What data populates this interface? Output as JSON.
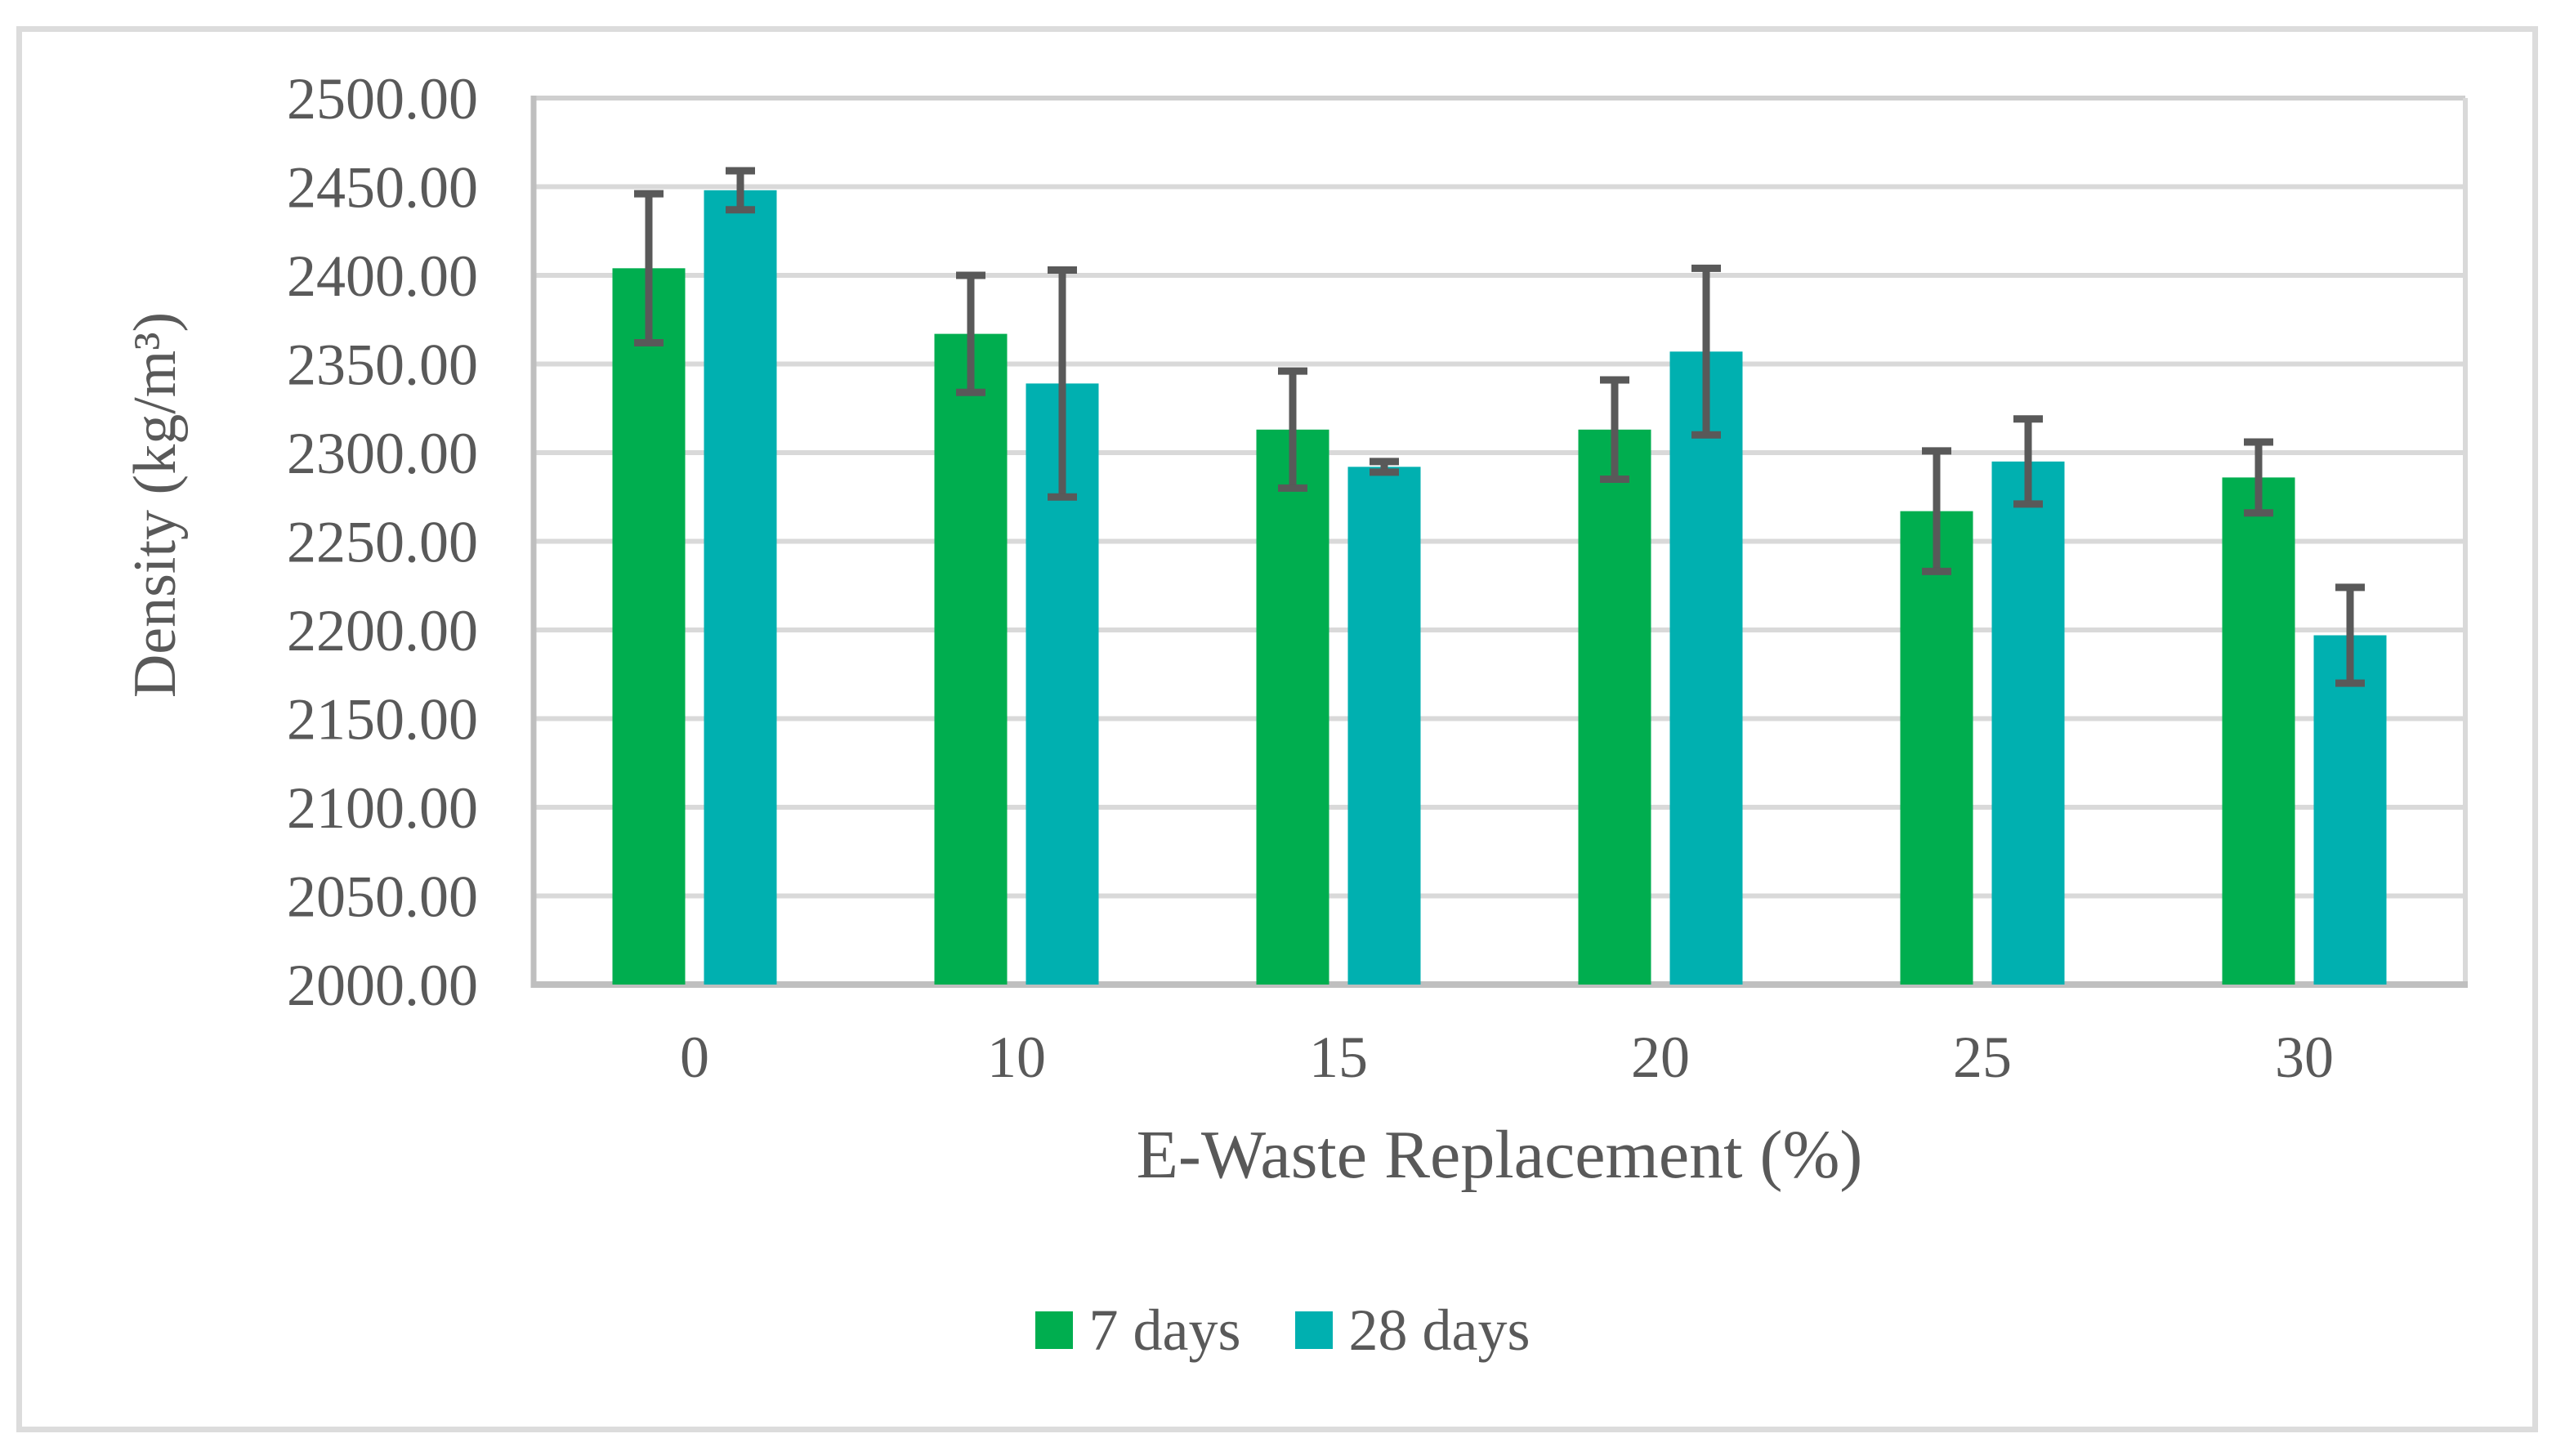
{
  "chart_data": {
    "type": "bar",
    "title": "",
    "xlabel": "E-Waste Replacement (%)",
    "ylabel": "Density (kg/m³)",
    "categories": [
      "0",
      "10",
      "15",
      "20",
      "25",
      "30"
    ],
    "series": [
      {
        "name": "7 days",
        "color": "#00AE4F",
        "values": [
          2404,
          2367,
          2313,
          2313,
          2267,
          2286
        ],
        "errors": [
          42,
          33,
          33,
          28,
          34,
          20
        ]
      },
      {
        "name": "28 days",
        "color": "#00B0B0",
        "values": [
          2448,
          2339,
          2292,
          2357,
          2295,
          2197
        ],
        "errors": [
          11,
          64,
          3,
          47,
          24,
          27
        ]
      }
    ],
    "ylim": [
      2000,
      2500
    ],
    "ytick_step": 50,
    "yticks": [
      "2500.00",
      "2450.00",
      "2400.00",
      "2350.00",
      "2300.00",
      "2250.00",
      "2200.00",
      "2150.00",
      "2100.00",
      "2050.00",
      "2000.00"
    ],
    "xticks": [
      "0",
      "10",
      "15",
      "20",
      "25",
      "30"
    ],
    "grid": true,
    "legend_position": "bottom-center",
    "error_bar_color": "#595959"
  },
  "styles": {
    "text_color": "#595959",
    "gridline_color": "#D9D9D9",
    "axis_color": "#BFBFBF",
    "plot_border_color": "#CFCFCF",
    "frame_color": "#DCDCDC",
    "background": "#FFFFFF"
  }
}
